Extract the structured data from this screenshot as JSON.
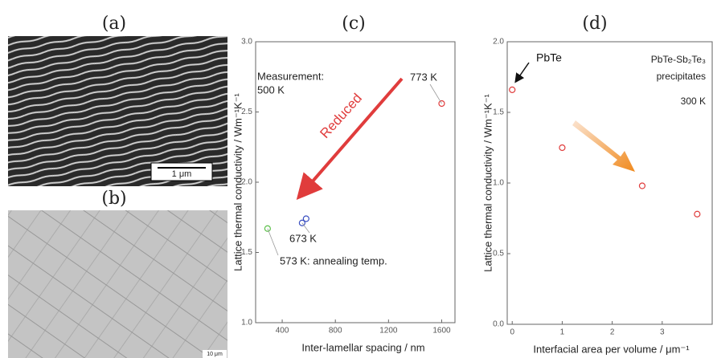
{
  "panels": {
    "a": {
      "label": "(a)",
      "scale_bar": "1 μm"
    },
    "b": {
      "label": "(b)",
      "scale_bar": "10 μm"
    }
  },
  "chart_data": [
    {
      "type": "scatter",
      "panel_label": "(c)",
      "x_label": "Inter-lamellar spacing / nm",
      "y_label": "Lattice thermal conductivity / Wm⁻¹K⁻¹",
      "xlim": [
        200,
        1700
      ],
      "ylim": [
        1.0,
        3.0
      ],
      "xticks": [
        400,
        800,
        1200,
        1600
      ],
      "yticks": [
        {
          "value": 1.0,
          "label": "1.0"
        },
        {
          "value": 1.5,
          "label": "1.5"
        },
        {
          "value": 2.0,
          "label": "2.0"
        },
        {
          "value": 2.5,
          "label": "2.5"
        },
        {
          "value": 3.0,
          "label": "3.0"
        }
      ],
      "annotations": [
        "Measurement:",
        "500 K",
        "Reduced"
      ],
      "series": [
        {
          "name": "773 K",
          "color": "#e03c3c",
          "x": [
            1600
          ],
          "values": [
            2.56
          ]
        },
        {
          "name": "673 K",
          "color": "#3a4fc0",
          "x": [
            550,
            580
          ],
          "values": [
            1.71,
            1.74
          ]
        },
        {
          "name": "573 K: annealing temp.",
          "color": "#5cc04a",
          "x": [
            290
          ],
          "values": [
            1.67
          ]
        }
      ]
    },
    {
      "type": "scatter",
      "panel_label": "(d)",
      "x_label": "Interfacial area per volume / μm⁻¹",
      "y_label": "Lattice thermal conductivity / Wm⁻¹K⁻¹",
      "xlim": [
        -0.1,
        4
      ],
      "ylim": [
        0.0,
        2.0
      ],
      "xticks": [
        0,
        1,
        2,
        3
      ],
      "yticks": [
        {
          "value": 0.0,
          "label": "0.0"
        },
        {
          "value": 0.5,
          "label": "0.5"
        },
        {
          "value": 1.0,
          "label": "1.0"
        },
        {
          "value": 1.5,
          "label": "1.5"
        },
        {
          "value": 2.0,
          "label": "2.0"
        }
      ],
      "annotations": [
        "PbTe",
        "PbTe-Sb₂Te₃",
        "precipitates",
        "300 K"
      ],
      "color": "#e03c3c",
      "x": [
        0,
        1,
        2.6,
        3.7
      ],
      "values": [
        1.66,
        1.25,
        0.98,
        0.78
      ]
    }
  ]
}
